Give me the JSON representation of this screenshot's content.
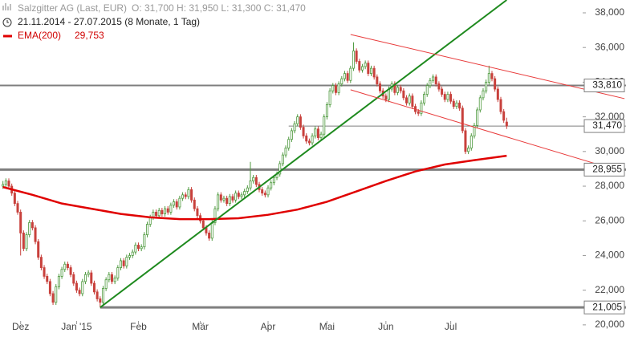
{
  "chart_data": {
    "type": "candlestick",
    "title": "Salzgitter AG (Last, EUR)",
    "quote": "O: 31,700  H: 31,950  L: 31,300  C: 31,470",
    "subtitle": "21.11.2014 - 27.07.2015 (8 Monate, 1 Tag)",
    "up_color": "#4f9a3f",
    "down_color": "#c8413c",
    "xlim": [
      -1,
      211.5
    ],
    "xticks": [
      {
        "value": 6,
        "label": "Dez"
      },
      {
        "value": 25,
        "label": "Jan '15"
      },
      {
        "value": 46,
        "label": "Feb"
      },
      {
        "value": 67,
        "label": "Mär"
      },
      {
        "value": 90,
        "label": "Apr"
      },
      {
        "value": 110,
        "label": "Mai"
      },
      {
        "value": 130,
        "label": "Jun"
      },
      {
        "value": 152,
        "label": "Jul"
      }
    ],
    "ylim": [
      19300,
      38740
    ],
    "yticks": [
      {
        "value": 20000,
        "label": "20,000"
      },
      {
        "value": 22000,
        "label": "22,000"
      },
      {
        "value": 24000,
        "label": "24,000"
      },
      {
        "value": 26000,
        "label": "26,000"
      },
      {
        "value": 28000,
        "label": "28,000"
      },
      {
        "value": 30000,
        "label": "30,000"
      },
      {
        "value": 32000,
        "label": "32,000"
      },
      {
        "value": 34000,
        "label": "34,000"
      },
      {
        "value": 36000,
        "label": "36,000"
      },
      {
        "value": 38000,
        "label": "38,000"
      }
    ],
    "ohlc": [
      [
        28000,
        28300,
        27850,
        28100
      ],
      [
        28100,
        28450,
        27950,
        28300
      ],
      [
        28300,
        28450,
        27850,
        28000
      ],
      [
        28000,
        28150,
        27450,
        27600
      ],
      [
        27600,
        27750,
        26850,
        27000
      ],
      [
        27000,
        27150,
        26350,
        26500
      ],
      [
        26500,
        26650,
        24000,
        25300
      ],
      [
        25300,
        25450,
        24250,
        24400
      ],
      [
        24400,
        25350,
        24250,
        25200
      ],
      [
        25200,
        26050,
        25050,
        25900
      ],
      [
        25900,
        26050,
        25450,
        25600
      ],
      [
        25600,
        25750,
        24650,
        24800
      ],
      [
        24800,
        24950,
        23750,
        23900
      ],
      [
        23900,
        24050,
        23150,
        23300
      ],
      [
        23300,
        23450,
        22650,
        22800
      ],
      [
        22800,
        22950,
        22350,
        22500
      ],
      [
        22500,
        22650,
        21650,
        21800
      ],
      [
        21800,
        21950,
        21150,
        21300
      ],
      [
        21300,
        22350,
        21150,
        22200
      ],
      [
        22200,
        22950,
        22050,
        22800
      ],
      [
        22800,
        23350,
        22650,
        23200
      ],
      [
        23200,
        23650,
        23050,
        23500
      ],
      [
        23500,
        23650,
        23150,
        23300
      ],
      [
        23300,
        23450,
        22750,
        22900
      ],
      [
        22900,
        23050,
        22250,
        22400
      ],
      [
        22400,
        22550,
        21850,
        22000
      ],
      [
        22000,
        22150,
        21650,
        21800
      ],
      [
        21800,
        22650,
        21650,
        22500
      ],
      [
        22500,
        23050,
        22350,
        22900
      ],
      [
        22900,
        23150,
        22750,
        23000
      ],
      [
        23000,
        23150,
        22250,
        22400
      ],
      [
        22400,
        22550,
        21750,
        21900
      ],
      [
        21900,
        22050,
        21350,
        21500
      ],
      [
        21500,
        21650,
        21005,
        21300
      ],
      [
        21300,
        22250,
        21150,
        22100
      ],
      [
        22100,
        22750,
        21950,
        22600
      ],
      [
        22600,
        23050,
        22450,
        22900
      ],
      [
        22900,
        23050,
        22350,
        22500
      ],
      [
        22500,
        22850,
        22350,
        22700
      ],
      [
        22700,
        23450,
        22550,
        23300
      ],
      [
        23300,
        23850,
        23150,
        23700
      ],
      [
        23700,
        23850,
        23250,
        23400
      ],
      [
        23400,
        24050,
        23250,
        23900
      ],
      [
        23900,
        24150,
        23750,
        24000
      ],
      [
        24000,
        24350,
        23850,
        24200
      ],
      [
        24200,
        24750,
        24050,
        24600
      ],
      [
        24600,
        24750,
        24250,
        24400
      ],
      [
        24400,
        24650,
        24250,
        24500
      ],
      [
        24500,
        25350,
        24350,
        25200
      ],
      [
        25200,
        25950,
        25050,
        25800
      ],
      [
        25800,
        26350,
        25650,
        26200
      ],
      [
        26200,
        26650,
        26050,
        26500
      ],
      [
        26500,
        26650,
        26150,
        26300
      ],
      [
        26300,
        26750,
        26150,
        26600
      ],
      [
        26600,
        26750,
        26250,
        26400
      ],
      [
        26400,
        26850,
        26250,
        26700
      ],
      [
        26700,
        26850,
        26350,
        26500
      ],
      [
        26500,
        27050,
        26350,
        26900
      ],
      [
        26900,
        27250,
        26750,
        27100
      ],
      [
        27100,
        27250,
        26650,
        26800
      ],
      [
        26800,
        27450,
        26650,
        27300
      ],
      [
        27300,
        27650,
        27150,
        27500
      ],
      [
        27500,
        27650,
        27250,
        27400
      ],
      [
        27400,
        27950,
        27250,
        27800
      ],
      [
        27800,
        27950,
        27050,
        27200
      ],
      [
        27200,
        27350,
        26550,
        26700
      ],
      [
        26700,
        26850,
        26150,
        26300
      ],
      [
        26300,
        26450,
        25850,
        26000
      ],
      [
        26000,
        26150,
        25450,
        25600
      ],
      [
        25600,
        25750,
        25150,
        25300
      ],
      [
        25300,
        25450,
        24850,
        25000
      ],
      [
        25000,
        26050,
        24850,
        25900
      ],
      [
        25900,
        26850,
        25750,
        26700
      ],
      [
        26700,
        27650,
        26550,
        27500
      ],
      [
        27500,
        27650,
        27050,
        27200
      ],
      [
        27200,
        27450,
        27050,
        27300
      ],
      [
        27300,
        27450,
        26850,
        27000
      ],
      [
        27000,
        27550,
        26850,
        27400
      ],
      [
        27400,
        27550,
        27050,
        27200
      ],
      [
        27200,
        27750,
        27050,
        27600
      ],
      [
        27600,
        27750,
        27250,
        27400
      ],
      [
        27400,
        27650,
        27250,
        27500
      ],
      [
        27500,
        27850,
        27350,
        27700
      ],
      [
        27700,
        28050,
        27550,
        27900
      ],
      [
        27900,
        29400,
        27750,
        28300
      ],
      [
        28300,
        28650,
        28150,
        28500
      ],
      [
        28500,
        28650,
        27950,
        28100
      ],
      [
        28100,
        28250,
        27650,
        27800
      ],
      [
        27800,
        27950,
        27450,
        27600
      ],
      [
        27600,
        27750,
        27350,
        27500
      ],
      [
        27500,
        28050,
        27350,
        27900
      ],
      [
        27900,
        28350,
        27750,
        28200
      ],
      [
        28200,
        28650,
        28050,
        28500
      ],
      [
        28500,
        28850,
        28350,
        28700
      ],
      [
        28700,
        29450,
        28550,
        29300
      ],
      [
        29300,
        29950,
        29150,
        29800
      ],
      [
        29800,
        30350,
        29650,
        30200
      ],
      [
        30200,
        30850,
        30050,
        30700
      ],
      [
        30700,
        31350,
        30550,
        31200
      ],
      [
        31200,
        31750,
        31050,
        31600
      ],
      [
        31600,
        32150,
        31450,
        32000
      ],
      [
        32000,
        32150,
        31250,
        31400
      ],
      [
        31400,
        31550,
        30750,
        30900
      ],
      [
        30900,
        31050,
        30450,
        30600
      ],
      [
        30600,
        30750,
        30350,
        30500
      ],
      [
        30500,
        31050,
        30350,
        30900
      ],
      [
        30900,
        31450,
        30750,
        31300
      ],
      [
        31300,
        31450,
        30650,
        30800
      ],
      [
        30800,
        31150,
        30650,
        31000
      ],
      [
        31000,
        32150,
        30850,
        32000
      ],
      [
        32000,
        32850,
        31850,
        32700
      ],
      [
        32700,
        33650,
        32550,
        33500
      ],
      [
        33500,
        33950,
        33350,
        33800
      ],
      [
        33800,
        33950,
        33250,
        33400
      ],
      [
        33400,
        34050,
        33250,
        33900
      ],
      [
        33900,
        34350,
        33750,
        34200
      ],
      [
        34200,
        34650,
        34050,
        34500
      ],
      [
        34500,
        34650,
        33950,
        34100
      ],
      [
        34100,
        34950,
        33950,
        34800
      ],
      [
        34800,
        36300,
        34650,
        35800
      ],
      [
        35800,
        35950,
        35050,
        35200
      ],
      [
        35200,
        35350,
        34550,
        34700
      ],
      [
        34700,
        35050,
        34550,
        34900
      ],
      [
        34900,
        35250,
        34750,
        35100
      ],
      [
        35100,
        35250,
        34350,
        34500
      ],
      [
        34500,
        34950,
        34350,
        34800
      ],
      [
        34800,
        34950,
        34150,
        34300
      ],
      [
        34300,
        34450,
        33750,
        33900
      ],
      [
        33900,
        34050,
        33350,
        33500
      ],
      [
        33500,
        33650,
        33050,
        33200
      ],
      [
        33200,
        33350,
        32850,
        33000
      ],
      [
        33000,
        33750,
        32850,
        33600
      ],
      [
        33600,
        34050,
        33450,
        33900
      ],
      [
        33900,
        34050,
        33250,
        33400
      ],
      [
        33400,
        33850,
        33250,
        33700
      ],
      [
        33700,
        33850,
        33350,
        33500
      ],
      [
        33500,
        33650,
        32950,
        33100
      ],
      [
        33100,
        33250,
        32650,
        32800
      ],
      [
        32800,
        33350,
        32650,
        33200
      ],
      [
        33200,
        33350,
        32450,
        32600
      ],
      [
        32600,
        32750,
        32150,
        32300
      ],
      [
        32300,
        32450,
        32050,
        32200
      ],
      [
        32200,
        32950,
        32050,
        32800
      ],
      [
        32800,
        33450,
        32650,
        33300
      ],
      [
        33300,
        33950,
        33150,
        33800
      ],
      [
        33800,
        34250,
        33650,
        34100
      ],
      [
        34100,
        34450,
        33950,
        34300
      ],
      [
        34300,
        34450,
        33750,
        33900
      ],
      [
        33900,
        34050,
        33450,
        33600
      ],
      [
        33600,
        33750,
        33150,
        33300
      ],
      [
        33300,
        33450,
        32850,
        33000
      ],
      [
        33000,
        33450,
        32850,
        33300
      ],
      [
        33300,
        33450,
        32750,
        32900
      ],
      [
        32900,
        33050,
        32450,
        32600
      ],
      [
        32600,
        32950,
        32450,
        32800
      ],
      [
        32800,
        32950,
        32350,
        32500
      ],
      [
        32500,
        32650,
        31050,
        31200
      ],
      [
        31200,
        31350,
        29850,
        30000
      ],
      [
        30000,
        30350,
        29850,
        30200
      ],
      [
        30200,
        31050,
        30050,
        30900
      ],
      [
        30900,
        31650,
        30750,
        31500
      ],
      [
        31500,
        32550,
        31350,
        32400
      ],
      [
        32400,
        33250,
        32250,
        33100
      ],
      [
        33100,
        33650,
        32950,
        33500
      ],
      [
        33500,
        34150,
        33350,
        34000
      ],
      [
        34000,
        34950,
        33850,
        34500
      ],
      [
        34500,
        34650,
        34050,
        34200
      ],
      [
        34200,
        34350,
        33450,
        33600
      ],
      [
        33600,
        33750,
        32850,
        33000
      ],
      [
        33000,
        33150,
        32150,
        32300
      ],
      [
        32300,
        32450,
        31650,
        31800
      ],
      [
        31700,
        31950,
        31300,
        31470
      ]
    ],
    "ema": {
      "name": "EMA(200)",
      "value_label": "29,753",
      "color": "#e00000",
      "x": [
        0,
        10,
        20,
        30,
        40,
        50,
        60,
        70,
        80,
        90,
        100,
        110,
        120,
        130,
        140,
        150,
        160,
        171
      ],
      "values": [
        27950,
        27500,
        27000,
        26700,
        26400,
        26200,
        26100,
        26100,
        26150,
        26350,
        26650,
        27100,
        27700,
        28300,
        28850,
        29250,
        29500,
        29753
      ]
    },
    "levels": [
      {
        "value": 33810,
        "label": "33,810",
        "from": -1,
        "width": 2
      },
      {
        "value": 31470,
        "label": "31,470",
        "from": 97,
        "width": 1
      },
      {
        "value": 28955,
        "label": "28,955",
        "from": -1,
        "width": 3
      },
      {
        "value": 21005,
        "label": "21,005",
        "from": 33,
        "width": 3
      }
    ],
    "level_color": "#7f7f7f",
    "trend_lines": [
      {
        "color": "#1e8a1e",
        "width": 2,
        "points": [
          [
            33,
            21005
          ],
          [
            171,
            38740
          ]
        ]
      },
      {
        "color": "#e83a3a",
        "width": 1,
        "points": [
          [
            118,
            36750
          ],
          [
            211,
            33050
          ]
        ]
      },
      {
        "color": "#e83a3a",
        "width": 1,
        "points": [
          [
            118,
            33560
          ],
          [
            211,
            28790
          ]
        ]
      }
    ]
  }
}
